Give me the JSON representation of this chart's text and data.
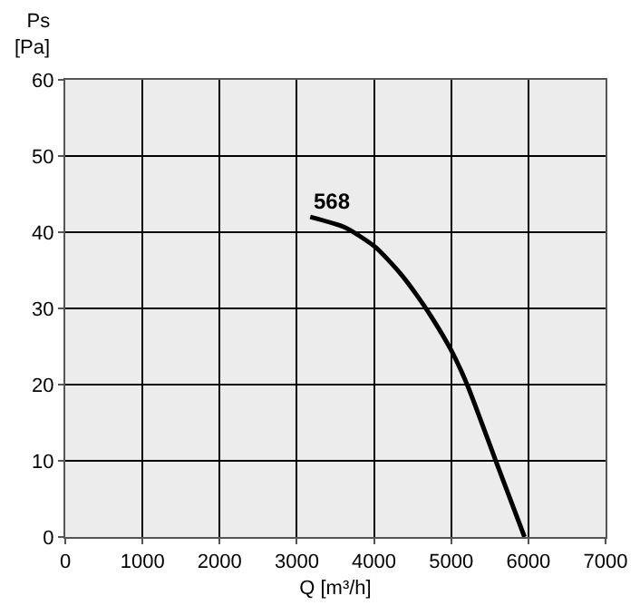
{
  "chart_data": {
    "type": "line",
    "xlabel": "Q [m³/h]",
    "ylabel": "Ps\n[Pa]",
    "series": [
      {
        "color": "#000000",
        "x": [
          3174,
          3630,
          4024,
          4340,
          4550,
          4750,
          5000,
          5215,
          5570,
          5950
        ],
        "values": [
          42.0,
          40.6,
          38.0,
          34.6,
          31.8,
          28.8,
          24.5,
          19.8,
          10.2,
          0
        ]
      }
    ],
    "annotations": [
      {
        "text": "568",
        "x": 3174,
        "y": 42
      }
    ],
    "xlim": [
      0,
      7000
    ],
    "xticks": [
      0,
      1000,
      2000,
      3000,
      4000,
      5000,
      6000,
      7000
    ],
    "ylim": [
      0,
      60
    ],
    "yticks": [
      0,
      10,
      20,
      30,
      40,
      50,
      60
    ],
    "grid": true,
    "marker": "none",
    "line_style": "solid"
  }
}
